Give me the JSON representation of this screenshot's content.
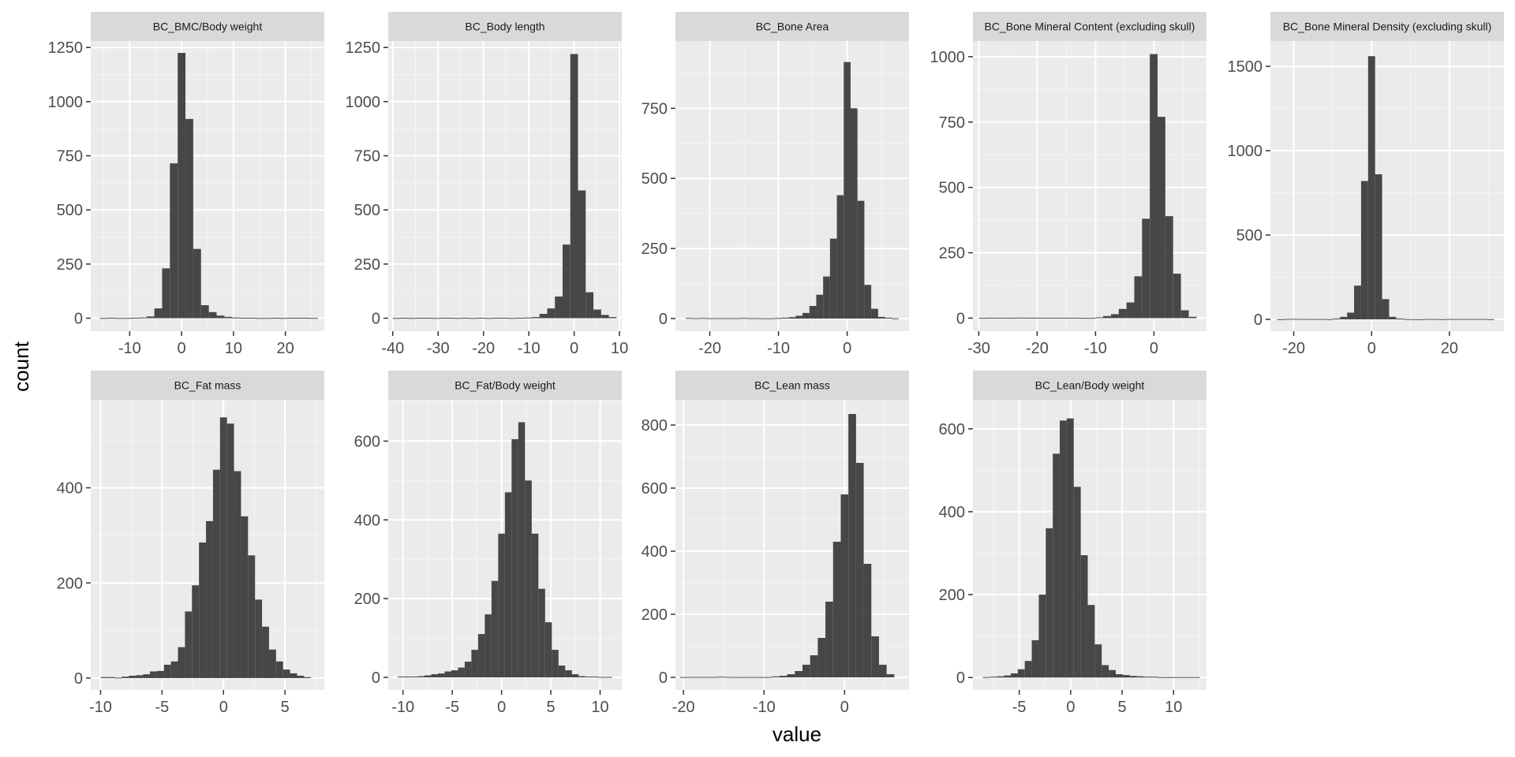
{
  "figure": {
    "xlabel": "value",
    "ylabel": "count",
    "colors": {
      "panel_background": "#ebebeb",
      "strip_background": "#d9d9d9",
      "grid_major": "#ffffff",
      "grid_minor": "#f5f5f5",
      "bar_fill": "#474747",
      "tick_text": "#4d4d4d"
    }
  },
  "chart_data": [
    {
      "type": "bar",
      "title": "BC_BMC/Body weight",
      "xlim": [
        -17.5,
        27.5
      ],
      "ylim": [
        -60,
        1280
      ],
      "xticks": [
        -10,
        0,
        10,
        20
      ],
      "xtick_labels": [
        "-10",
        "0",
        "10",
        "20"
      ],
      "yticks": [
        0,
        250,
        500,
        750,
        1000,
        1250
      ],
      "ytick_labels": [
        "0",
        "250",
        "500",
        "750",
        "1000",
        "1250"
      ],
      "bin_width": 1.5,
      "bin_centers": [
        -15,
        -13.5,
        -12,
        -10.5,
        -9,
        -7.5,
        -6,
        -4.5,
        -3,
        -1.5,
        0,
        1.5,
        3,
        4.5,
        6,
        7.5,
        9,
        10.5,
        12,
        13.5,
        15,
        16.5,
        18,
        19.5,
        21,
        22.5,
        24,
        25.5
      ],
      "counts": [
        1,
        0,
        1,
        1,
        2,
        3,
        8,
        45,
        230,
        715,
        1225,
        920,
        320,
        60,
        28,
        12,
        6,
        3,
        2,
        2,
        1,
        1,
        0,
        1,
        0,
        0,
        0,
        1
      ]
    },
    {
      "type": "bar",
      "title": "BC_Body length",
      "xlim": [
        -41,
        10.5
      ],
      "ylim": [
        -60,
        1280
      ],
      "xticks": [
        -40,
        -30,
        -20,
        -10,
        0,
        10
      ],
      "xtick_labels": [
        "-40",
        "-30",
        "-20",
        "-10",
        "0",
        "10"
      ],
      "yticks": [
        0,
        250,
        500,
        750,
        1000,
        1250
      ],
      "ytick_labels": [
        "0",
        "250",
        "500",
        "750",
        "1000",
        "1250"
      ],
      "bin_width": 1.7,
      "bin_centers": [
        -39.1,
        -37.4,
        -35.7,
        -34.0,
        -32.3,
        -30.6,
        -28.9,
        -27.2,
        -25.5,
        -23.8,
        -22.1,
        -20.4,
        -18.7,
        -17.0,
        -15.3,
        -13.6,
        -11.9,
        -10.2,
        -8.5,
        -6.8,
        -5.1,
        -3.4,
        -1.7,
        0,
        1.7,
        3.4,
        5.1,
        6.8,
        8.5
      ],
      "counts": [
        1,
        0,
        1,
        0,
        0,
        1,
        0,
        0,
        1,
        0,
        1,
        0,
        1,
        0,
        0,
        1,
        2,
        3,
        5,
        20,
        45,
        100,
        340,
        1220,
        590,
        120,
        40,
        15,
        5
      ]
    },
    {
      "type": "bar",
      "title": "BC_Bone Area",
      "xlim": [
        -25,
        9
      ],
      "ylim": [
        -45,
        990
      ],
      "xticks": [
        -20,
        -10,
        0
      ],
      "xtick_labels": [
        "-20",
        "-10",
        "0"
      ],
      "yticks": [
        0,
        250,
        500,
        750
      ],
      "ytick_labels": [
        "0",
        "250",
        "500",
        "750"
      ],
      "bin_width": 1.0,
      "bin_centers": [
        -23,
        -22,
        -21,
        -20,
        -19,
        -18,
        -17,
        -16,
        -15,
        -14,
        -13,
        -12,
        -11,
        -10,
        -9,
        -8,
        -7,
        -6,
        -5,
        -4,
        -3,
        -2,
        -1,
        0,
        1,
        2,
        3,
        4,
        5,
        6,
        7
      ],
      "counts": [
        2,
        0,
        2,
        0,
        0,
        0,
        0,
        0,
        2,
        0,
        0,
        1,
        1,
        2,
        3,
        5,
        10,
        20,
        45,
        85,
        150,
        285,
        440,
        915,
        750,
        420,
        120,
        35,
        6,
        3,
        1
      ]
    },
    {
      "type": "bar",
      "title": "BC_Bone Mineral Content (excluding skull)",
      "xlim": [
        -31,
        9
      ],
      "ylim": [
        -50,
        1060
      ],
      "xticks": [
        -30,
        -20,
        -10,
        0
      ],
      "xtick_labels": [
        "-30",
        "-20",
        "-10",
        "0"
      ],
      "yticks": [
        0,
        250,
        500,
        750,
        1000
      ],
      "ytick_labels": [
        "0",
        "250",
        "500",
        "750",
        "1000"
      ],
      "bin_width": 1.33,
      "bin_centers": [
        -29.3,
        -27.97,
        -26.64,
        -25.31,
        -23.98,
        -22.65,
        -21.32,
        -19.99,
        -18.66,
        -17.33,
        -16.0,
        -14.67,
        -13.34,
        -12.01,
        -10.68,
        -9.35,
        -8.02,
        -6.69,
        -5.36,
        -4.03,
        -2.7,
        -1.37,
        -0.04,
        1.29,
        2.62,
        3.96,
        5.3,
        6.63
      ],
      "counts": [
        1,
        0,
        0,
        0,
        0,
        2,
        0,
        0,
        0,
        0,
        0,
        0,
        0,
        1,
        1,
        3,
        8,
        15,
        35,
        60,
        160,
        380,
        1010,
        770,
        390,
        170,
        30,
        5
      ]
    },
    {
      "type": "bar",
      "title": "BC_Bone Mineral Density (excluding skull)",
      "xlim": [
        -26,
        34
      ],
      "ylim": [
        -70,
        1650
      ],
      "xticks": [
        -20,
        0,
        20
      ],
      "xtick_labels": [
        "-20",
        "0",
        "20"
      ],
      "yticks": [
        0,
        500,
        1000,
        1500
      ],
      "ytick_labels": [
        "0",
        "500",
        "1000",
        "1500"
      ],
      "bin_width": 1.8,
      "bin_centers": [
        -23.4,
        -21.6,
        -19.8,
        -18.0,
        -16.2,
        -14.4,
        -12.6,
        -10.8,
        -9.0,
        -7.2,
        -5.4,
        -3.6,
        -1.8,
        0,
        1.8,
        3.6,
        5.4,
        7.2,
        9.0,
        10.8,
        12.6,
        14.4,
        16.2,
        18.0,
        19.8,
        21.6,
        23.4,
        25.2,
        27.0,
        28.8,
        30.6
      ],
      "counts": [
        1,
        0,
        3,
        0,
        0,
        2,
        0,
        1,
        5,
        15,
        40,
        200,
        820,
        1560,
        860,
        120,
        15,
        5,
        2,
        1,
        1,
        0,
        0,
        1,
        0,
        0,
        0,
        0,
        0,
        0,
        1
      ]
    },
    {
      "type": "bar",
      "title": "BC_Fat mass",
      "xlim": [
        -10.8,
        8.2
      ],
      "ylim": [
        -25,
        585
      ],
      "xticks": [
        -10,
        -5,
        0,
        5
      ],
      "xtick_labels": [
        "-10",
        "-5",
        "0",
        "5"
      ],
      "yticks": [
        0,
        200,
        400
      ],
      "ytick_labels": [
        "0",
        "200",
        "400"
      ],
      "bin_width": 0.57,
      "bin_centers": [
        -9.69,
        -9.12,
        -8.55,
        -7.98,
        -7.41,
        -6.84,
        -6.27,
        -5.7,
        -5.13,
        -4.56,
        -3.99,
        -3.42,
        -2.85,
        -2.28,
        -1.71,
        -1.14,
        -0.57,
        0,
        0.57,
        1.14,
        1.71,
        2.28,
        2.85,
        3.42,
        3.99,
        4.56,
        5.13,
        5.7,
        6.27,
        6.84
      ],
      "counts": [
        2,
        2,
        1,
        3,
        5,
        6,
        8,
        14,
        15,
        28,
        35,
        65,
        140,
        195,
        285,
        330,
        438,
        548,
        535,
        435,
        340,
        258,
        165,
        108,
        60,
        35,
        18,
        10,
        5,
        2
      ]
    },
    {
      "type": "bar",
      "title": "BC_Fat/Body weight",
      "xlim": [
        -11.5,
        12.2
      ],
      "ylim": [
        -32,
        705
      ],
      "xticks": [
        -10,
        -5,
        0,
        5,
        10
      ],
      "xtick_labels": [
        "-10",
        "-5",
        "0",
        "5",
        "10"
      ],
      "yticks": [
        0,
        200,
        400,
        600
      ],
      "ytick_labels": [
        "0",
        "200",
        "400",
        "600"
      ],
      "bin_width": 0.68,
      "bin_centers": [
        -10.2,
        -9.52,
        -8.84,
        -8.16,
        -7.48,
        -6.8,
        -6.12,
        -5.44,
        -4.76,
        -4.08,
        -3.4,
        -2.72,
        -2.04,
        -1.36,
        -0.68,
        0,
        0.68,
        1.36,
        2.04,
        2.72,
        3.4,
        4.08,
        4.76,
        5.44,
        6.12,
        6.8,
        7.48,
        8.16,
        8.84,
        9.52,
        10.2,
        10.88
      ],
      "counts": [
        2,
        2,
        2,
        3,
        5,
        8,
        10,
        15,
        18,
        25,
        40,
        70,
        110,
        160,
        245,
        365,
        470,
        605,
        648,
        500,
        365,
        225,
        140,
        70,
        30,
        18,
        8,
        3,
        2,
        2,
        1,
        1
      ]
    },
    {
      "type": "bar",
      "title": "BC_Lean mass",
      "xlim": [
        -21,
        8
      ],
      "ylim": [
        -40,
        880
      ],
      "xticks": [
        -20,
        -10,
        0
      ],
      "xtick_labels": [
        "-20",
        "-10",
        "0"
      ],
      "yticks": [
        0,
        200,
        400,
        600,
        800
      ],
      "ytick_labels": [
        "0",
        "200",
        "400",
        "600",
        "800"
      ],
      "bin_width": 0.95,
      "bin_centers": [
        -19.95,
        -19.0,
        -18.05,
        -17.1,
        -16.15,
        -15.2,
        -14.25,
        -13.3,
        -12.35,
        -11.4,
        -10.45,
        -9.5,
        -8.55,
        -7.6,
        -6.65,
        -5.7,
        -4.75,
        -3.8,
        -2.85,
        -1.9,
        -0.95,
        0,
        0.95,
        1.9,
        2.85,
        3.8,
        4.75,
        5.7
      ],
      "counts": [
        1,
        0,
        0,
        0,
        0,
        2,
        0,
        1,
        1,
        0,
        1,
        1,
        3,
        5,
        10,
        20,
        40,
        70,
        125,
        240,
        430,
        580,
        835,
        680,
        360,
        130,
        40,
        10
      ]
    },
    {
      "type": "bar",
      "title": "BC_Lean/Body weight",
      "xlim": [
        -9.5,
        13.2
      ],
      "ylim": [
        -30,
        670
      ],
      "xticks": [
        -5,
        0,
        5,
        10
      ],
      "xtick_labels": [
        "-5",
        "0",
        "5",
        "10"
      ],
      "yticks": [
        0,
        200,
        400,
        600
      ],
      "ytick_labels": [
        "0",
        "200",
        "400",
        "600"
      ],
      "bin_width": 0.68,
      "bin_centers": [
        -8.2,
        -7.52,
        -6.84,
        -6.16,
        -5.48,
        -4.8,
        -4.12,
        -3.44,
        -2.76,
        -2.08,
        -1.4,
        -0.72,
        -0.04,
        0.64,
        1.32,
        2.0,
        2.68,
        3.36,
        4.04,
        4.72,
        5.4,
        6.08,
        6.76,
        7.44,
        8.12,
        8.8,
        9.48,
        10.16,
        10.84,
        11.52,
        12.2
      ],
      "counts": [
        1,
        2,
        3,
        5,
        10,
        20,
        40,
        90,
        200,
        360,
        540,
        620,
        625,
        460,
        295,
        175,
        80,
        30,
        18,
        8,
        6,
        4,
        3,
        2,
        2,
        1,
        1,
        1,
        1,
        1,
        1
      ]
    }
  ]
}
